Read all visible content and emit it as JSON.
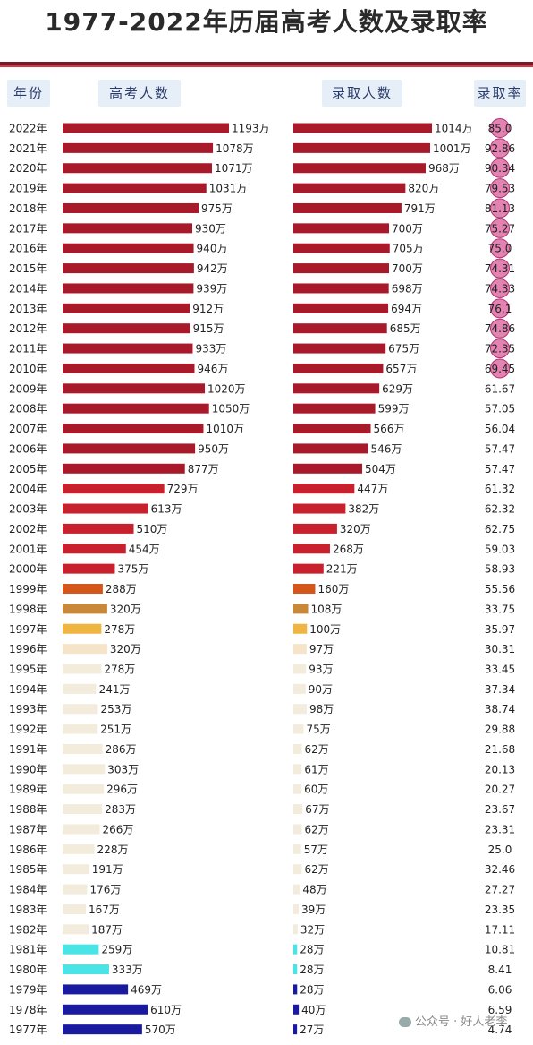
{
  "title": "1977-2022年历届高考人数及录取率",
  "headers": {
    "year": "年份",
    "applicants": "高考人数",
    "admitted": "录取人数",
    "rate": "录取率"
  },
  "unit": "万",
  "year_suffix": "年",
  "watermark": "公众号 · 好人老李",
  "colors": {
    "title_rule": "#7a1a24",
    "accent_rule": "#d23a45",
    "bar_dark_red": "#a8192a",
    "bar_red": "#c8202c",
    "bar_orange": "#d4561a",
    "bar_tan": "#c88838",
    "bar_gold": "#f0b440",
    "bar_pale": "#f6e4c8",
    "bar_cream": "#f3ecdc",
    "bar_cyan": "#48e4e6",
    "bar_navy": "#1a1aa0",
    "rate_circle": "#d85a98"
  },
  "chart_data": {
    "type": "bar",
    "title": "1977-2022年历届高考人数及录取率",
    "categories": [
      "2022",
      "2021",
      "2020",
      "2019",
      "2018",
      "2017",
      "2016",
      "2015",
      "2014",
      "2013",
      "2012",
      "2011",
      "2010",
      "2009",
      "2008",
      "2007",
      "2006",
      "2005",
      "2004",
      "2003",
      "2002",
      "2001",
      "2000",
      "1999",
      "1998",
      "1997",
      "1996",
      "1995",
      "1994",
      "1993",
      "1992",
      "1991",
      "1990",
      "1989",
      "1988",
      "1987",
      "1986",
      "1985",
      "1984",
      "1983",
      "1982",
      "1981",
      "1980",
      "1979",
      "1978",
      "1977"
    ],
    "series": [
      {
        "name": "高考人数",
        "unit": "万",
        "values": [
          1193,
          1078,
          1071,
          1031,
          975,
          930,
          940,
          942,
          939,
          912,
          915,
          933,
          946,
          1020,
          1050,
          1010,
          950,
          877,
          729,
          613,
          510,
          454,
          375,
          288,
          320,
          278,
          320,
          278,
          241,
          253,
          251,
          286,
          303,
          296,
          283,
          266,
          228,
          191,
          176,
          167,
          187,
          259,
          333,
          469,
          610,
          570
        ]
      },
      {
        "name": "录取人数",
        "unit": "万",
        "values": [
          1014,
          1001,
          968,
          820,
          791,
          700,
          705,
          700,
          698,
          694,
          685,
          675,
          657,
          629,
          599,
          566,
          546,
          504,
          447,
          382,
          320,
          268,
          221,
          160,
          108,
          100,
          97,
          93,
          90,
          98,
          75,
          62,
          61,
          60,
          67,
          62,
          57,
          62,
          48,
          39,
          32,
          28,
          28,
          28,
          40,
          27
        ]
      },
      {
        "name": "录取率",
        "labels": [
          "85.0",
          "92.86",
          "90.34",
          "79.53",
          "81.13",
          "75.27",
          "75.0",
          "74.31",
          "74.33",
          "76.1",
          "74.86",
          "72.35",
          "69.45",
          "61.67",
          "57.05",
          "56.04",
          "57.47",
          "57.47",
          "61.32",
          "62.32",
          "62.75",
          "59.03",
          "58.93",
          "55.56",
          "33.75",
          "35.97",
          "30.31",
          "33.45",
          "37.34",
          "38.74",
          "29.88",
          "21.68",
          "20.13",
          "20.27",
          "23.67",
          "23.31",
          "25.0",
          "32.46",
          "27.27",
          "23.35",
          "17.11",
          "10.81",
          "8.41",
          "6.06",
          "6.59",
          "4.74"
        ]
      }
    ],
    "highlighted_rate_count": 13,
    "xlim_applicants": [
      0,
      1193
    ],
    "xlim_admitted": [
      0,
      1014
    ]
  }
}
